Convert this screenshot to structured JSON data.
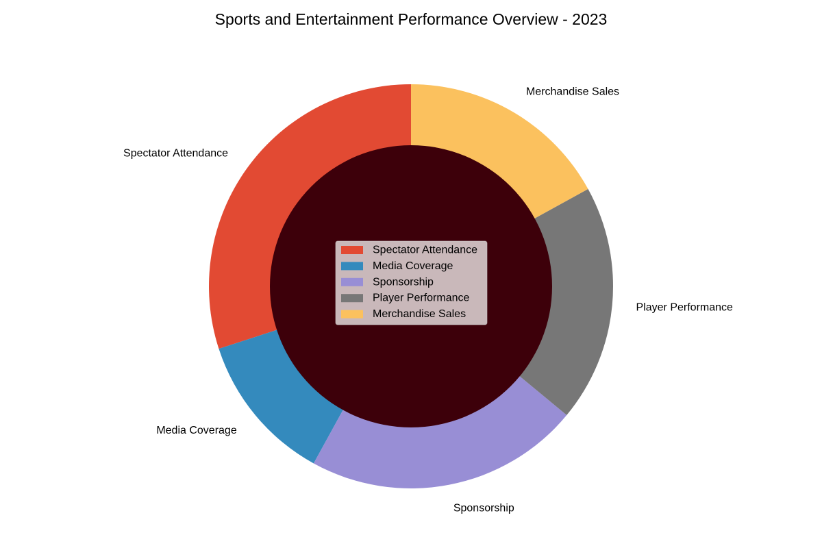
{
  "chart_data": {
    "type": "pie",
    "title": "Sports and Entertainment Performance Overview - 2023",
    "categories": [
      "Spectator Attendance",
      "Media Coverage",
      "Sponsorship",
      "Player Performance",
      "Merchandise Sales"
    ],
    "values": [
      30,
      12,
      22,
      19,
      17
    ],
    "colors": [
      "#E24A33",
      "#348ABD",
      "#988ED5",
      "#777777",
      "#FBC15E"
    ],
    "donut_center_color": "#3D000A",
    "start_angle_deg": 90,
    "direction": "counterclockwise",
    "legend": {
      "placement": "center",
      "entries": [
        "Spectator Attendance",
        "Media Coverage",
        "Sponsorship",
        "Player Performance",
        "Merchandise Sales"
      ]
    }
  }
}
